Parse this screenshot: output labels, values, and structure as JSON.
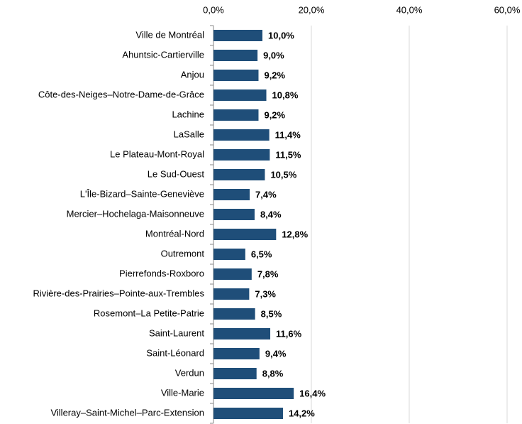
{
  "chart_data": {
    "type": "hbar",
    "categories": [
      "Ville de Montréal",
      "Ahuntsic-Cartierville",
      "Anjou",
      "Côte-des-Neiges–Notre-Dame-de-Grâce",
      "Lachine",
      "LaSalle",
      "Le Plateau-Mont-Royal",
      "Le Sud-Ouest",
      "L'Île-Bizard–Sainte-Geneviève",
      "Mercier–Hochelaga-Maisonneuve",
      "Montréal-Nord",
      "Outremont",
      "Pierrefonds-Roxboro",
      "Rivière-des-Prairies–Pointe-aux-Trembles",
      "Rosemont–La Petite-Patrie",
      "Saint-Laurent",
      "Saint-Léonard",
      "Verdun",
      "Ville-Marie",
      "Villeray–Saint-Michel–Parc-Extension"
    ],
    "values": [
      10.0,
      9.0,
      9.2,
      10.8,
      9.2,
      11.4,
      11.5,
      10.5,
      7.4,
      8.4,
      12.8,
      6.5,
      7.8,
      7.3,
      8.5,
      11.6,
      9.4,
      8.8,
      16.4,
      14.2
    ],
    "value_labels": [
      "10,0%",
      "9,0%",
      "9,2%",
      "10,8%",
      "9,2%",
      "11,4%",
      "11,5%",
      "10,5%",
      "7,4%",
      "8,4%",
      "12,8%",
      "6,5%",
      "7,8%",
      "7,3%",
      "8,5%",
      "11,6%",
      "9,4%",
      "8,8%",
      "16,4%",
      "14,2%"
    ],
    "color": "#1f4e79",
    "xlim": [
      0,
      60
    ],
    "xticks": [
      {
        "value": 0,
        "label": "0,0%"
      },
      {
        "value": 20,
        "label": "20,0%"
      },
      {
        "value": 40,
        "label": "40,0%"
      },
      {
        "value": 60,
        "label": "60,0%"
      }
    ],
    "grid": true
  }
}
